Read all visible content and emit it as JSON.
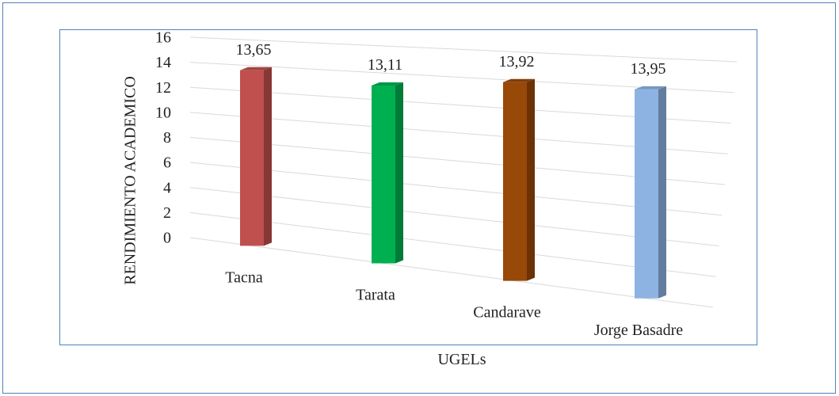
{
  "chart_data": {
    "type": "bar3d",
    "categories": [
      "Tacna",
      "Tarata",
      "Candarave",
      "Jorge Basadre"
    ],
    "values": [
      13.65,
      13.11,
      13.92,
      13.95
    ],
    "value_labels": [
      "13,65",
      "13,11",
      "13,92",
      "13,95"
    ],
    "colors": [
      "#c0504d",
      "#00b050",
      "#984807",
      "#8db3e2"
    ],
    "ylim": [
      0,
      16
    ],
    "yticks": [
      0,
      2,
      4,
      6,
      8,
      10,
      12,
      14,
      16
    ],
    "xlabel": "UGELs",
    "ylabel": "RENDIMIENTO ACADEMICO",
    "grid": true
  }
}
